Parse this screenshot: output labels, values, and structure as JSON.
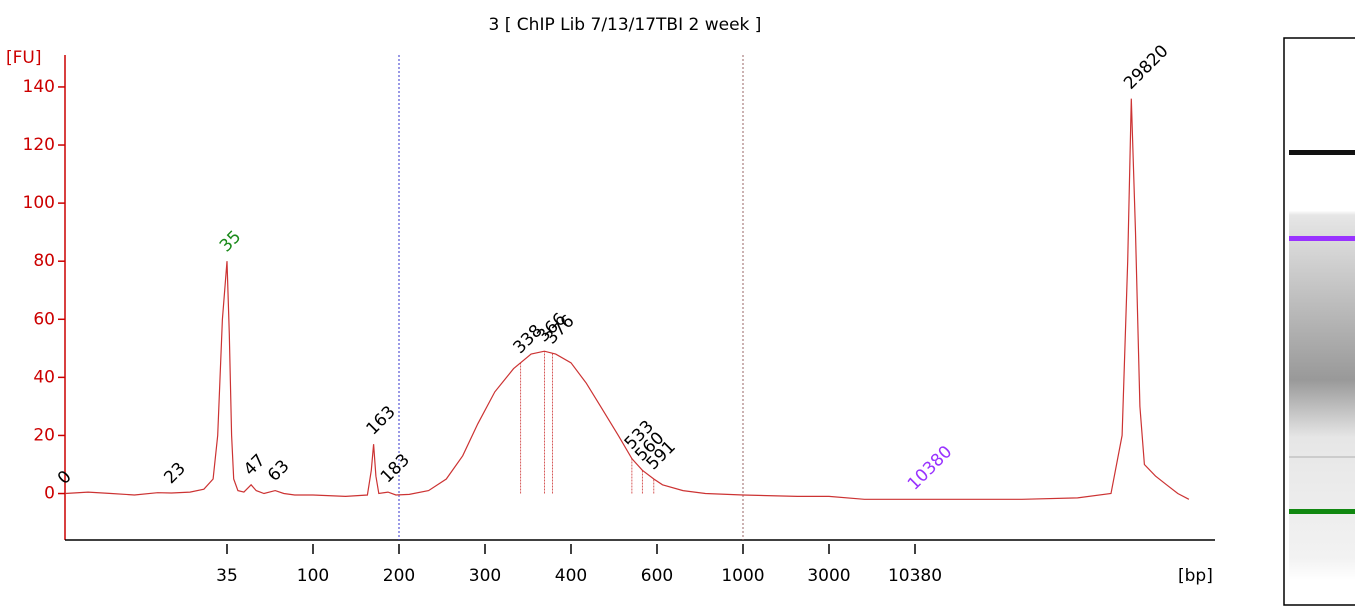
{
  "chart_data": {
    "type": "electropherogram",
    "title": "3  [ ChIP Lib 7/13/17TBI 2 week ]",
    "y_label": "[FU]",
    "x_label": "[bp]",
    "ylim": [
      -16,
      151
    ],
    "yticks": [
      0,
      20,
      40,
      60,
      80,
      100,
      120,
      140
    ],
    "xlim": [
      0,
      36000
    ],
    "xticks": [
      35,
      100,
      200,
      300,
      400,
      600,
      1000,
      3000,
      10380
    ],
    "axis_color": "#cc0000",
    "series": [
      {
        "color": "#cc3333",
        "x": [
          0,
          5,
          10,
          15,
          20,
          23,
          27,
          30,
          32,
          33,
          34,
          35,
          36,
          37,
          38,
          40,
          43,
          47,
          50,
          55,
          63,
          70,
          80,
          100,
          130,
          155,
          160,
          163,
          166,
          170,
          183,
          195,
          210,
          230,
          250,
          270,
          290,
          310,
          330,
          350,
          366,
          380,
          400,
          430,
          460,
          500,
          533,
          560,
          591,
          620,
          700,
          800,
          1000,
          2000,
          3000,
          5000,
          10380,
          15000,
          20000,
          25000,
          28000,
          29000,
          29500,
          29820,
          30200,
          30600,
          31000,
          32000,
          33000,
          34000,
          35000
        ],
        "values": [
          0,
          0.5,
          0,
          -0.5,
          0.3,
          0.2,
          0.5,
          1.5,
          5,
          20,
          60,
          80,
          55,
          20,
          5,
          1,
          0.5,
          3,
          1,
          0,
          1,
          0,
          -0.5,
          -0.5,
          -1,
          -0.5,
          8,
          17,
          6,
          0,
          0.5,
          -0.5,
          -0.3,
          1,
          5,
          13,
          24,
          35,
          43,
          48,
          49,
          48,
          45,
          38,
          30,
          20,
          12,
          8,
          5,
          3,
          1,
          0,
          -0.5,
          -1,
          -1,
          -2,
          -2,
          -2,
          -2,
          -1.5,
          0,
          20,
          80,
          136,
          90,
          30,
          10,
          6,
          3,
          0,
          -2
        ]
      }
    ],
    "peaks": [
      {
        "size": 0,
        "color": "#000000"
      },
      {
        "size": 23,
        "color": "#000000"
      },
      {
        "size": 35,
        "color": "#1a8a1a"
      },
      {
        "size": 47,
        "color": "#000000"
      },
      {
        "size": 63,
        "color": "#000000"
      },
      {
        "size": 163,
        "color": "#000000"
      },
      {
        "size": 183,
        "color": "#000000"
      },
      {
        "size": 338,
        "color": "#000000",
        "line": true
      },
      {
        "size": 366,
        "color": "#000000",
        "line": true
      },
      {
        "size": 376,
        "color": "#000000",
        "line": true
      },
      {
        "size": 533,
        "color": "#000000",
        "line": true
      },
      {
        "size": 560,
        "color": "#000000",
        "line": true
      },
      {
        "size": 591,
        "color": "#000000",
        "line": true
      },
      {
        "size": 10380,
        "color": "#9933ff"
      },
      {
        "size": 29820,
        "color": "#000000"
      }
    ],
    "region_lines": [
      {
        "value": 200,
        "color": "#3333cc"
      },
      {
        "value": 1000,
        "color": "#996666"
      }
    ]
  }
}
